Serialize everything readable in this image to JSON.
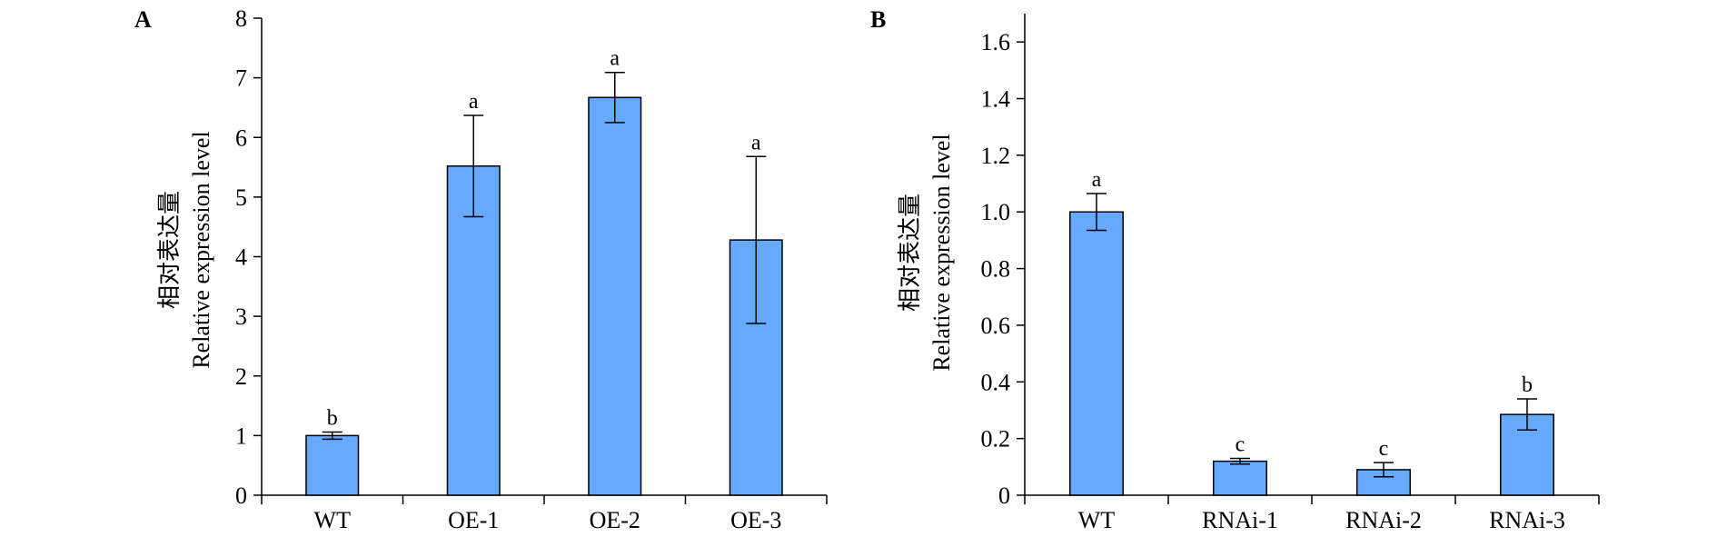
{
  "colors": {
    "bar": "#66aaff",
    "stroke": "#000000"
  },
  "chart_data": [
    {
      "type": "bar",
      "panel": "A",
      "categories": [
        "WT",
        "OE-1",
        "OE-2",
        "OE-3"
      ],
      "values": [
        1.0,
        5.52,
        6.67,
        4.28
      ],
      "errors": [
        0.06,
        0.85,
        0.42,
        1.4
      ],
      "significance": [
        "b",
        "a",
        "a",
        "a"
      ],
      "ylabel": [
        "相对表达量",
        "Relative expression level"
      ],
      "ylim": [
        0,
        8
      ],
      "yticks": [
        "0",
        "1",
        "2",
        "3",
        "4",
        "5",
        "6",
        "7",
        "8"
      ],
      "grid": false,
      "legend": "none"
    },
    {
      "type": "bar",
      "panel": "B",
      "categories": [
        "WT",
        "RNAi-1",
        "RNAi-2",
        "RNAi-3"
      ],
      "values": [
        1.0,
        0.12,
        0.09,
        0.285
      ],
      "errors": [
        0.065,
        0.01,
        0.025,
        0.055
      ],
      "significance": [
        "a",
        "c",
        "c",
        "b"
      ],
      "ylabel": [
        "相对表达量",
        "Relative expression level"
      ],
      "ylim": [
        0,
        1.7
      ],
      "yticks": [
        "0",
        "0.2",
        "0.4",
        "0.6",
        "0.8",
        "1.0",
        "1.2",
        "1.4",
        "1.6"
      ],
      "grid": false,
      "legend": "none"
    }
  ]
}
